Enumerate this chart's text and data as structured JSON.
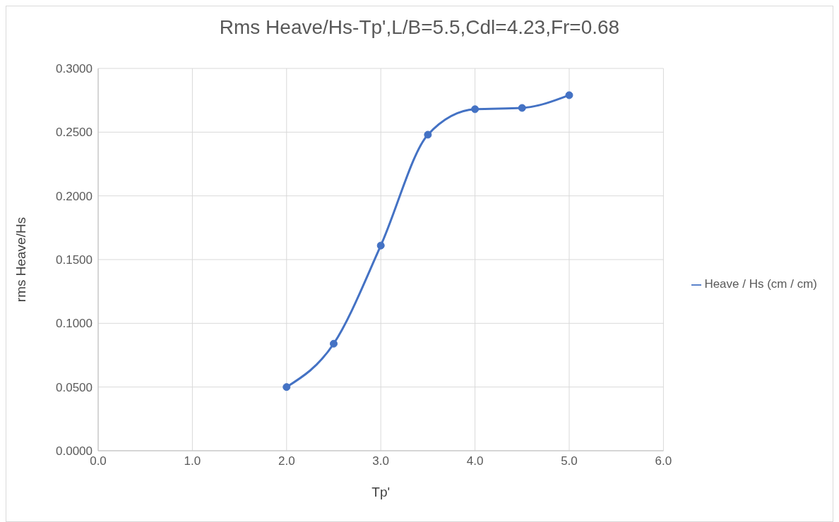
{
  "chart_data": {
    "type": "line",
    "title": "Rms Heave/Hs-Tp',L/B=5.5,Cdl=4.23,Fr=0.68",
    "xlabel": "Tp'",
    "ylabel": "rms Heave/Hs",
    "x": [
      2.0,
      2.5,
      3.0,
      3.5,
      4.0,
      4.5,
      5.0
    ],
    "series": [
      {
        "name": "Heave / Hs  (cm / cm)",
        "color": "#4472c4",
        "values": [
          0.05,
          0.084,
          0.161,
          0.248,
          0.268,
          0.269,
          0.279
        ]
      }
    ],
    "xlim": [
      0,
      6
    ],
    "xticks": [
      {
        "value": 0,
        "label": "0.0"
      },
      {
        "value": 1,
        "label": "1.0"
      },
      {
        "value": 2,
        "label": "2.0"
      },
      {
        "value": 3,
        "label": "3.0"
      },
      {
        "value": 4,
        "label": "4.0"
      },
      {
        "value": 5,
        "label": "5.0"
      },
      {
        "value": 6,
        "label": "6.0"
      }
    ],
    "ylim": [
      0,
      0.3
    ],
    "yticks": [
      {
        "value": 0,
        "label": "0.0000"
      },
      {
        "value": 0.05,
        "label": "0.0500"
      },
      {
        "value": 0.1,
        "label": "0.1000"
      },
      {
        "value": 0.15,
        "label": "0.1500"
      },
      {
        "value": 0.2,
        "label": "0.2000"
      },
      {
        "value": 0.25,
        "label": "0.2500"
      },
      {
        "value": 0.3,
        "label": "0.3000"
      }
    ],
    "grid": true,
    "legend": "right",
    "marker": "circle",
    "line_style": "solid"
  }
}
